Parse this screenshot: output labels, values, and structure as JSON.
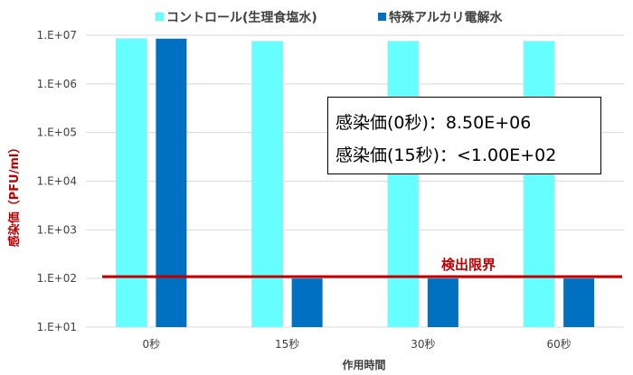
{
  "chart_data": {
    "type": "bar",
    "categories": [
      "0秒",
      "15秒",
      "30秒",
      "60秒"
    ],
    "series": [
      {
        "name": "コントロール(生理食塩水)",
        "values": [
          8500000,
          7500000,
          7500000,
          7500000
        ],
        "color": "#66FFFF"
      },
      {
        "name": "特殊アルカリ電解水",
        "values": [
          8500000,
          100,
          100,
          100
        ],
        "color": "#0070C0"
      }
    ],
    "xlabel": "作用時間",
    "ylabel": "感染価（PFU/ml）",
    "ylabel_color": "#C00000",
    "yscale": "log",
    "ylim": [
      10,
      10000000
    ],
    "yticks": [
      "1.E+01",
      "1.E+02",
      "1.E+03",
      "1.E+04",
      "1.E+05",
      "1.E+06",
      "1.E+07"
    ],
    "grid": true,
    "legend": "top",
    "reference_line": {
      "value": 100,
      "label": "検出限界",
      "color": "#C00000"
    },
    "annotations": [
      "感染価(0秒)：8.50E+06",
      "感染価(15秒)：<1.00E+02"
    ]
  }
}
